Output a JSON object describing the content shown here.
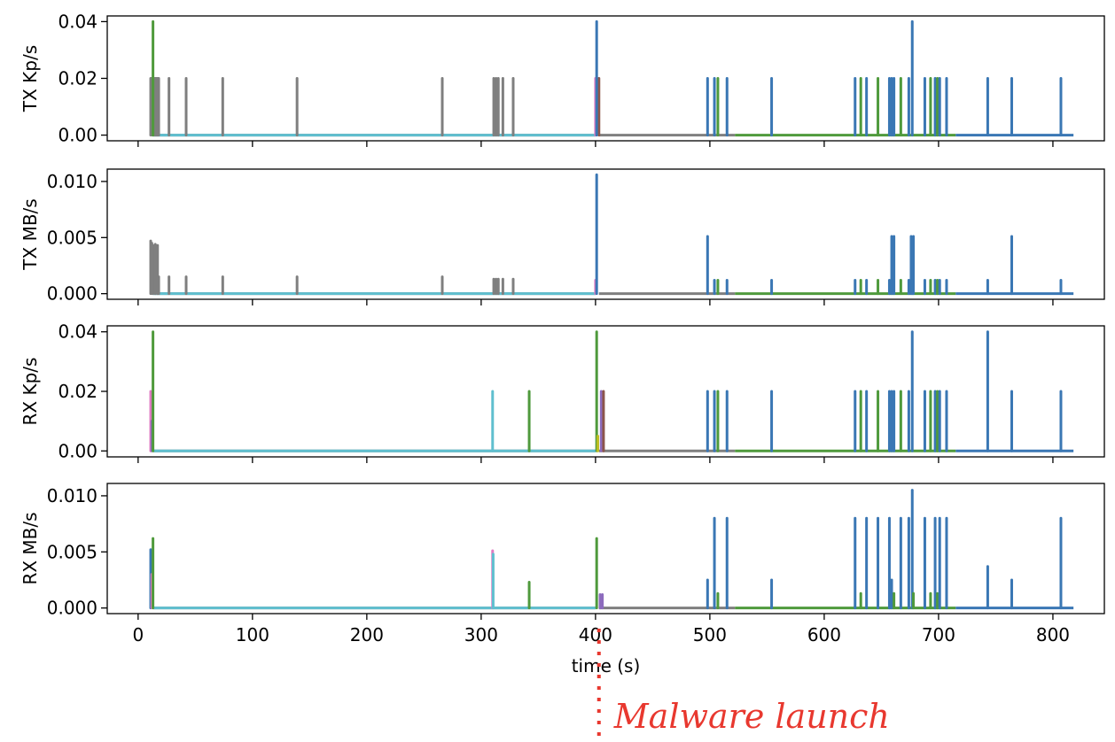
{
  "chart_data": {
    "type": "line",
    "x_axis": {
      "label": "time (s)",
      "lim": [
        -27,
        845
      ],
      "ticks": [
        0,
        100,
        200,
        300,
        400,
        500,
        600,
        700,
        800
      ],
      "tick_labels": [
        "0",
        "100",
        "200",
        "300",
        "400",
        "500",
        "600",
        "700",
        "800"
      ]
    },
    "colors": {
      "blue": "#3a77b4",
      "gray": "#7f7f7f",
      "green": "#4f9a3c",
      "cyan": "#5fbfcf",
      "pink": "#e07ac2",
      "brown": "#8c564b",
      "olive": "#bcbd22",
      "purple": "#8d6bbd"
    },
    "annotation": {
      "text": "Malware launch",
      "x": 403
    },
    "panels": [
      {
        "ylabel": "TX Kp/s",
        "ylim": [
          -0.002,
          0.042
        ],
        "yticks": [
          0.0,
          0.02,
          0.04
        ],
        "ytick_labels": [
          "0.00",
          "0.02",
          "0.04"
        ],
        "spikes": [
          {
            "color": "gray",
            "x": 11,
            "y": 0.02
          },
          {
            "color": "gray",
            "x": 12,
            "y": 0.02
          },
          {
            "color": "gray",
            "x": 13,
            "y": 0.02
          },
          {
            "color": "gray",
            "x": 14,
            "y": 0.02
          },
          {
            "color": "gray",
            "x": 15,
            "y": 0.02
          },
          {
            "color": "gray",
            "x": 16,
            "y": 0.02
          },
          {
            "color": "gray",
            "x": 17,
            "y": 0.02
          },
          {
            "color": "gray",
            "x": 18,
            "y": 0.02
          },
          {
            "color": "green",
            "x": 13,
            "y": 0.04
          },
          {
            "color": "gray",
            "x": 27,
            "y": 0.02
          },
          {
            "color": "gray",
            "x": 42,
            "y": 0.02
          },
          {
            "color": "gray",
            "x": 74,
            "y": 0.02
          },
          {
            "color": "gray",
            "x": 139,
            "y": 0.02
          },
          {
            "color": "gray",
            "x": 266,
            "y": 0.02
          },
          {
            "color": "gray",
            "x": 311,
            "y": 0.02
          },
          {
            "color": "gray",
            "x": 313,
            "y": 0.02
          },
          {
            "color": "gray",
            "x": 315,
            "y": 0.02
          },
          {
            "color": "gray",
            "x": 319,
            "y": 0.02
          },
          {
            "color": "gray",
            "x": 328,
            "y": 0.02
          },
          {
            "color": "pink",
            "x": 400,
            "y": 0.02
          },
          {
            "color": "brown",
            "x": 403,
            "y": 0.02
          },
          {
            "color": "blue",
            "x": 401,
            "y": 0.04
          },
          {
            "color": "blue",
            "x": 498,
            "y": 0.02
          },
          {
            "color": "blue",
            "x": 504,
            "y": 0.02
          },
          {
            "color": "green",
            "x": 507,
            "y": 0.02
          },
          {
            "color": "blue",
            "x": 515,
            "y": 0.02
          },
          {
            "color": "blue",
            "x": 554,
            "y": 0.02
          },
          {
            "color": "blue",
            "x": 627,
            "y": 0.02
          },
          {
            "color": "green",
            "x": 632,
            "y": 0.02
          },
          {
            "color": "blue",
            "x": 637,
            "y": 0.02
          },
          {
            "color": "green",
            "x": 647,
            "y": 0.02
          },
          {
            "color": "blue",
            "x": 657,
            "y": 0.02
          },
          {
            "color": "blue",
            "x": 659,
            "y": 0.02
          },
          {
            "color": "blue",
            "x": 661,
            "y": 0.02
          },
          {
            "color": "green",
            "x": 667,
            "y": 0.02
          },
          {
            "color": "blue",
            "x": 674,
            "y": 0.02
          },
          {
            "color": "blue",
            "x": 677,
            "y": 0.04
          },
          {
            "color": "blue",
            "x": 688,
            "y": 0.02
          },
          {
            "color": "green",
            "x": 693,
            "y": 0.02
          },
          {
            "color": "blue",
            "x": 697,
            "y": 0.02
          },
          {
            "color": "green",
            "x": 699,
            "y": 0.02
          },
          {
            "color": "blue",
            "x": 701,
            "y": 0.02
          },
          {
            "color": "blue",
            "x": 707,
            "y": 0.02
          },
          {
            "color": "blue",
            "x": 743,
            "y": 0.02
          },
          {
            "color": "blue",
            "x": 764,
            "y": 0.02
          },
          {
            "color": "blue",
            "x": 807,
            "y": 0.02
          }
        ]
      },
      {
        "ylabel": "TX MB/s",
        "ylim": [
          -0.0005,
          0.0111
        ],
        "yticks": [
          0.0,
          0.005,
          0.01
        ],
        "ytick_labels": [
          "0.000",
          "0.005",
          "0.010"
        ],
        "spikes": [
          {
            "color": "gray",
            "x": 11,
            "y": 0.0047
          },
          {
            "color": "gray",
            "x": 12,
            "y": 0.0045
          },
          {
            "color": "gray",
            "x": 13,
            "y": 0.0043
          },
          {
            "color": "gray",
            "x": 15,
            "y": 0.0044
          },
          {
            "color": "gray",
            "x": 17,
            "y": 0.0043
          },
          {
            "color": "gray",
            "x": 18,
            "y": 0.0015
          },
          {
            "color": "gray",
            "x": 27,
            "y": 0.0015
          },
          {
            "color": "gray",
            "x": 42,
            "y": 0.0015
          },
          {
            "color": "gray",
            "x": 74,
            "y": 0.0015
          },
          {
            "color": "gray",
            "x": 139,
            "y": 0.0015
          },
          {
            "color": "gray",
            "x": 266,
            "y": 0.0015
          },
          {
            "color": "gray",
            "x": 311,
            "y": 0.0013
          },
          {
            "color": "gray",
            "x": 313,
            "y": 0.0013
          },
          {
            "color": "gray",
            "x": 315,
            "y": 0.0013
          },
          {
            "color": "gray",
            "x": 319,
            "y": 0.0013
          },
          {
            "color": "gray",
            "x": 328,
            "y": 0.0013
          },
          {
            "color": "pink",
            "x": 400,
            "y": 0.0012
          },
          {
            "color": "blue",
            "x": 401,
            "y": 0.0106
          },
          {
            "color": "blue",
            "x": 498,
            "y": 0.0051
          },
          {
            "color": "blue",
            "x": 504,
            "y": 0.0012
          },
          {
            "color": "green",
            "x": 507,
            "y": 0.0012
          },
          {
            "color": "blue",
            "x": 515,
            "y": 0.0012
          },
          {
            "color": "blue",
            "x": 554,
            "y": 0.0012
          },
          {
            "color": "blue",
            "x": 627,
            "y": 0.0012
          },
          {
            "color": "green",
            "x": 632,
            "y": 0.0012
          },
          {
            "color": "blue",
            "x": 637,
            "y": 0.0012
          },
          {
            "color": "green",
            "x": 647,
            "y": 0.0012
          },
          {
            "color": "blue",
            "x": 657,
            "y": 0.0012
          },
          {
            "color": "blue",
            "x": 659,
            "y": 0.0051
          },
          {
            "color": "blue",
            "x": 661,
            "y": 0.0051
          },
          {
            "color": "green",
            "x": 667,
            "y": 0.0012
          },
          {
            "color": "blue",
            "x": 674,
            "y": 0.0012
          },
          {
            "color": "blue",
            "x": 676,
            "y": 0.0051
          },
          {
            "color": "blue",
            "x": 678,
            "y": 0.0051
          },
          {
            "color": "blue",
            "x": 677,
            "y": 0.0026
          },
          {
            "color": "blue",
            "x": 688,
            "y": 0.0012
          },
          {
            "color": "green",
            "x": 693,
            "y": 0.0012
          },
          {
            "color": "blue",
            "x": 697,
            "y": 0.0012
          },
          {
            "color": "green",
            "x": 699,
            "y": 0.0012
          },
          {
            "color": "blue",
            "x": 701,
            "y": 0.0012
          },
          {
            "color": "blue",
            "x": 707,
            "y": 0.0012
          },
          {
            "color": "blue",
            "x": 743,
            "y": 0.0012
          },
          {
            "color": "blue",
            "x": 764,
            "y": 0.0051
          },
          {
            "color": "blue",
            "x": 807,
            "y": 0.0012
          }
        ]
      },
      {
        "ylabel": "RX Kp/s",
        "ylim": [
          -0.002,
          0.042
        ],
        "yticks": [
          0.0,
          0.02,
          0.04
        ],
        "ytick_labels": [
          "0.00",
          "0.02",
          "0.04"
        ],
        "spikes": [
          {
            "color": "pink",
            "x": 11,
            "y": 0.02
          },
          {
            "color": "purple",
            "x": 12,
            "y": 0.01
          },
          {
            "color": "green",
            "x": 13,
            "y": 0.04
          },
          {
            "color": "cyan",
            "x": 310,
            "y": 0.02
          },
          {
            "color": "green",
            "x": 342,
            "y": 0.02
          },
          {
            "color": "green",
            "x": 401,
            "y": 0.04
          },
          {
            "color": "olive",
            "x": 402,
            "y": 0.005
          },
          {
            "color": "purple",
            "x": 405,
            "y": 0.02
          },
          {
            "color": "brown",
            "x": 407,
            "y": 0.02
          },
          {
            "color": "blue",
            "x": 498,
            "y": 0.02
          },
          {
            "color": "blue",
            "x": 504,
            "y": 0.02
          },
          {
            "color": "green",
            "x": 507,
            "y": 0.02
          },
          {
            "color": "blue",
            "x": 515,
            "y": 0.02
          },
          {
            "color": "blue",
            "x": 554,
            "y": 0.02
          },
          {
            "color": "blue",
            "x": 627,
            "y": 0.02
          },
          {
            "color": "green",
            "x": 632,
            "y": 0.02
          },
          {
            "color": "blue",
            "x": 637,
            "y": 0.02
          },
          {
            "color": "green",
            "x": 647,
            "y": 0.02
          },
          {
            "color": "blue",
            "x": 657,
            "y": 0.02
          },
          {
            "color": "blue",
            "x": 659,
            "y": 0.02
          },
          {
            "color": "blue",
            "x": 661,
            "y": 0.02
          },
          {
            "color": "green",
            "x": 667,
            "y": 0.02
          },
          {
            "color": "blue",
            "x": 674,
            "y": 0.02
          },
          {
            "color": "blue",
            "x": 677,
            "y": 0.04
          },
          {
            "color": "blue",
            "x": 688,
            "y": 0.02
          },
          {
            "color": "green",
            "x": 693,
            "y": 0.02
          },
          {
            "color": "blue",
            "x": 697,
            "y": 0.02
          },
          {
            "color": "green",
            "x": 699,
            "y": 0.02
          },
          {
            "color": "blue",
            "x": 701,
            "y": 0.02
          },
          {
            "color": "blue",
            "x": 707,
            "y": 0.02
          },
          {
            "color": "blue",
            "x": 743,
            "y": 0.04
          },
          {
            "color": "blue",
            "x": 764,
            "y": 0.02
          },
          {
            "color": "blue",
            "x": 807,
            "y": 0.02
          }
        ]
      },
      {
        "ylabel": "RX MB/s",
        "ylim": [
          -0.0005,
          0.0111
        ],
        "yticks": [
          0.0,
          0.005,
          0.01
        ],
        "ytick_labels": [
          "0.000",
          "0.005",
          "0.010"
        ],
        "spikes": [
          {
            "color": "blue",
            "x": 11,
            "y": 0.0052
          },
          {
            "color": "pink",
            "x": 12,
            "y": 0.003
          },
          {
            "color": "green",
            "x": 13,
            "y": 0.0062
          },
          {
            "color": "pink",
            "x": 310,
            "y": 0.0051
          },
          {
            "color": "cyan",
            "x": 310.5,
            "y": 0.0048
          },
          {
            "color": "green",
            "x": 342,
            "y": 0.0023
          },
          {
            "color": "green",
            "x": 401,
            "y": 0.0062
          },
          {
            "color": "purple",
            "x": 404,
            "y": 0.0012
          },
          {
            "color": "purple",
            "x": 406,
            "y": 0.0012
          },
          {
            "color": "blue",
            "x": 498,
            "y": 0.0025
          },
          {
            "color": "blue",
            "x": 504,
            "y": 0.008
          },
          {
            "color": "green",
            "x": 507,
            "y": 0.0013
          },
          {
            "color": "blue",
            "x": 515,
            "y": 0.008
          },
          {
            "color": "blue",
            "x": 554,
            "y": 0.0025
          },
          {
            "color": "blue",
            "x": 627,
            "y": 0.008
          },
          {
            "color": "green",
            "x": 632,
            "y": 0.0013
          },
          {
            "color": "blue",
            "x": 637,
            "y": 0.008
          },
          {
            "color": "blue",
            "x": 647,
            "y": 0.008
          },
          {
            "color": "blue",
            "x": 657,
            "y": 0.008
          },
          {
            "color": "blue",
            "x": 659,
            "y": 0.0025
          },
          {
            "color": "green",
            "x": 661,
            "y": 0.0013
          },
          {
            "color": "blue",
            "x": 667,
            "y": 0.008
          },
          {
            "color": "blue",
            "x": 674,
            "y": 0.008
          },
          {
            "color": "blue",
            "x": 677,
            "y": 0.0105
          },
          {
            "color": "green",
            "x": 678,
            "y": 0.0013
          },
          {
            "color": "blue",
            "x": 688,
            "y": 0.008
          },
          {
            "color": "green",
            "x": 693,
            "y": 0.0013
          },
          {
            "color": "blue",
            "x": 697,
            "y": 0.008
          },
          {
            "color": "green",
            "x": 699,
            "y": 0.0013
          },
          {
            "color": "blue",
            "x": 701,
            "y": 0.008
          },
          {
            "color": "blue",
            "x": 707,
            "y": 0.008
          },
          {
            "color": "blue",
            "x": 743,
            "y": 0.0037
          },
          {
            "color": "blue",
            "x": 764,
            "y": 0.0025
          },
          {
            "color": "blue",
            "x": 807,
            "y": 0.008
          }
        ]
      }
    ],
    "baselines": [
      {
        "color": "gray",
        "x": [
          13,
          400
        ]
      },
      {
        "color": "cyan",
        "x": [
          13,
          400
        ]
      },
      {
        "color": "gray",
        "x": [
          403,
          522
        ]
      },
      {
        "color": "green",
        "x": [
          522,
          715
        ]
      },
      {
        "color": "blue",
        "x": [
          715,
          818
        ]
      }
    ]
  }
}
